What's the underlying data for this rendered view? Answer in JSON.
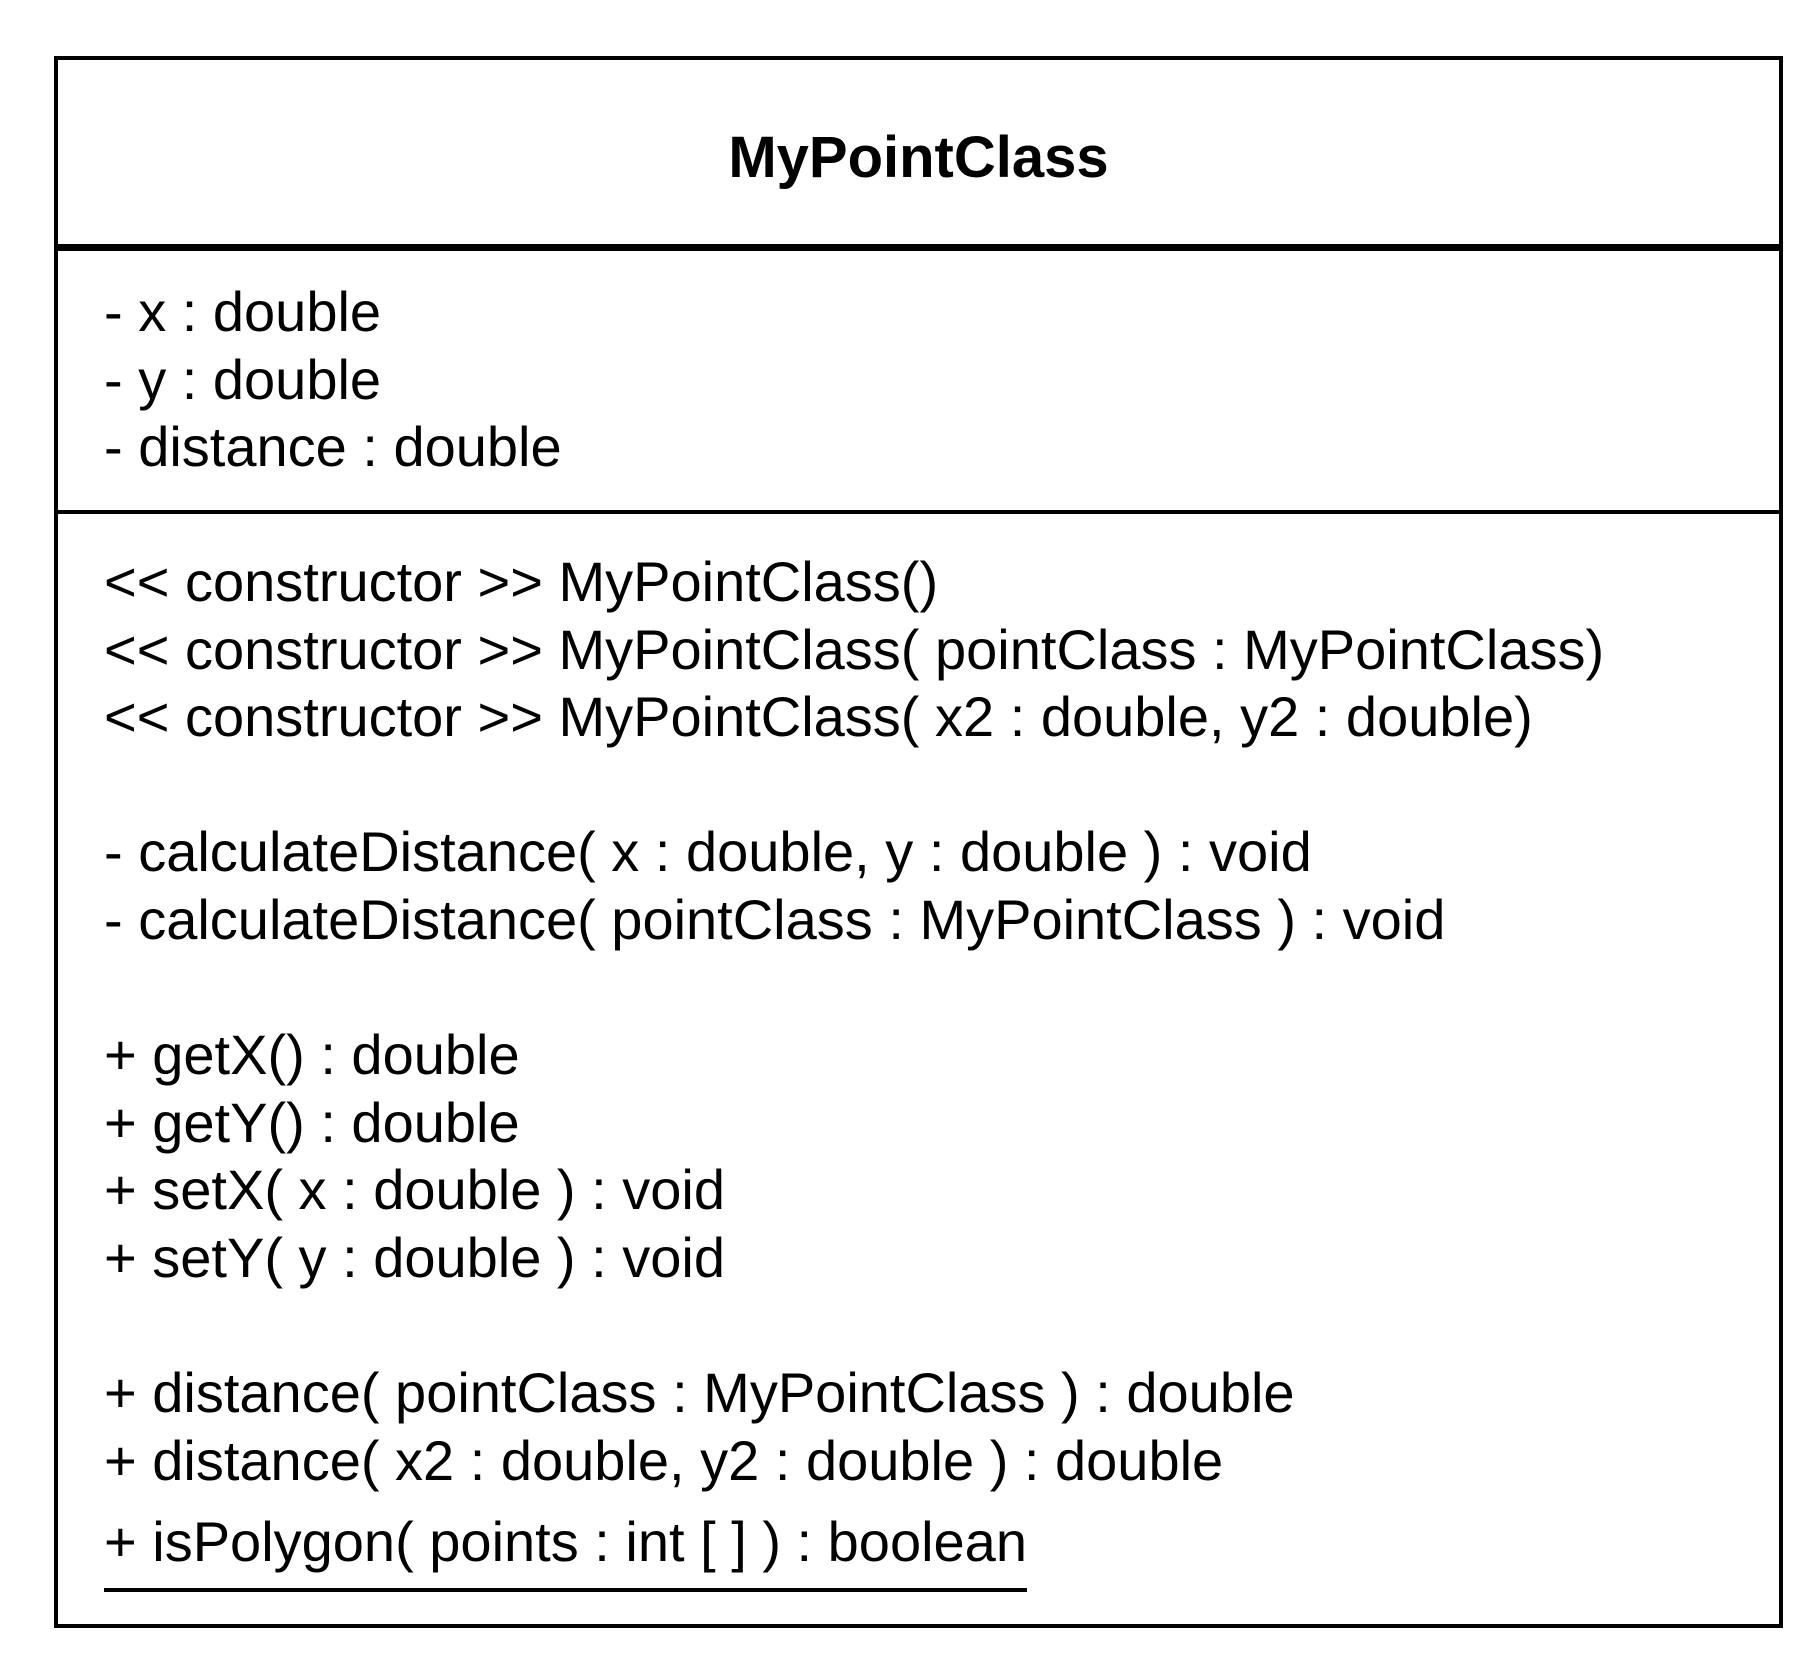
{
  "class": {
    "name": "MyPointClass",
    "attributes": [
      "- x : double",
      "- y : double",
      "- distance : double"
    ],
    "operations": [
      "<< constructor >> MyPointClass()",
      "<< constructor >> MyPointClass( pointClass : MyPointClass)",
      "<< constructor >> MyPointClass( x2 : double, y2 : double)",
      "- calculateDistance( x : double, y : double ) : void",
      "- calculateDistance( pointClass : MyPointClass ) : void",
      "+ getX() : double",
      "+ getY() : double",
      "+ setX( x : double ) : void",
      "+ setY( y : double ) : void",
      "+ distance( pointClass : MyPointClass ) : double",
      "+ distance( x2 : double, y2 : double ) : double",
      "+ isPolygon( points : int [ ] ) : boolean"
    ]
  },
  "colors": {
    "border": "#000000",
    "background": "#ffffff",
    "text": "#000000"
  }
}
